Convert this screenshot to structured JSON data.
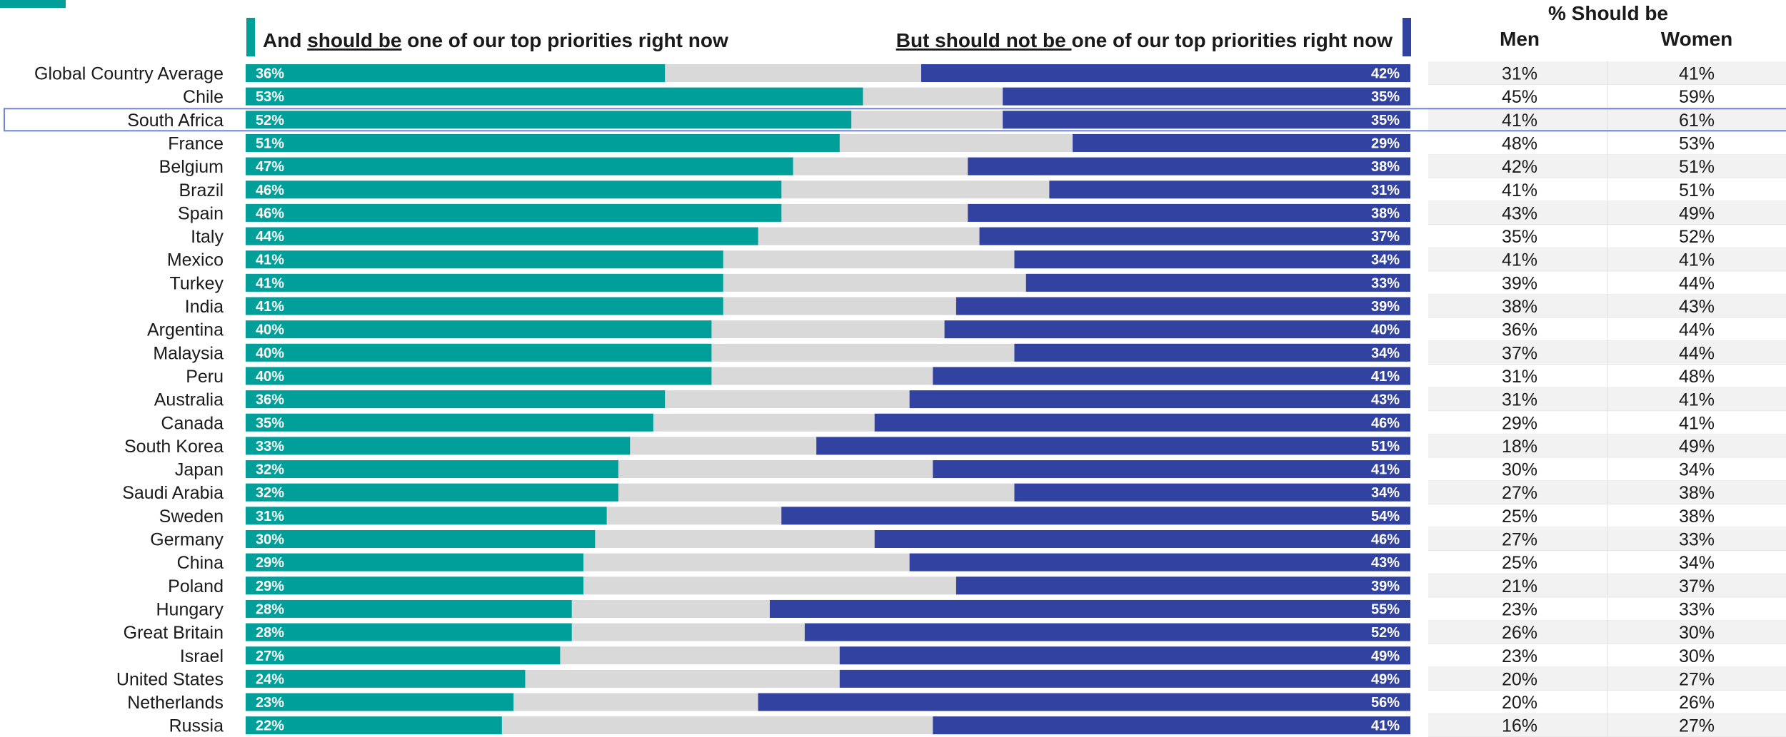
{
  "chart_data": {
    "type": "bar",
    "stacked": true,
    "orientation": "horizontal",
    "headers": {
      "left_prefix": "And ",
      "left_underlined": "should be",
      "left_suffix": " one of our top priorities right now",
      "right_underlined": "But should not be ",
      "right_suffix": "one of our top priorities right now",
      "table_title": "% Should be",
      "men": "Men",
      "women": "Women"
    },
    "colors": {
      "should": "#009f9a",
      "neutral": "#d9d9d9",
      "should_not": "#3142a0",
      "accent": "#009f9a",
      "highlight": "#6f84d9",
      "table_stripe": "#f2f2f2"
    },
    "highlighted": "South Africa",
    "series": [
      {
        "name": "should be",
        "values": [
          36,
          53,
          52,
          51,
          47,
          46,
          46,
          44,
          41,
          41,
          41,
          40,
          40,
          40,
          36,
          35,
          33,
          32,
          32,
          31,
          30,
          29,
          29,
          28,
          28,
          27,
          24,
          23,
          22
        ]
      },
      {
        "name": "should not be",
        "values": [
          42,
          35,
          35,
          29,
          38,
          31,
          38,
          37,
          34,
          33,
          39,
          40,
          34,
          41,
          43,
          46,
          51,
          41,
          34,
          54,
          46,
          43,
          39,
          55,
          52,
          49,
          49,
          56,
          41
        ]
      }
    ],
    "rows": [
      {
        "country": "Global Country Average",
        "should": "36%",
        "should_not": "42%",
        "men": "31%",
        "women": "41%"
      },
      {
        "country": "Chile",
        "should": "53%",
        "should_not": "35%",
        "men": "45%",
        "women": "59%"
      },
      {
        "country": "South Africa",
        "should": "52%",
        "should_not": "35%",
        "men": "41%",
        "women": "61%"
      },
      {
        "country": "France",
        "should": "51%",
        "should_not": "29%",
        "men": "48%",
        "women": "53%"
      },
      {
        "country": "Belgium",
        "should": "47%",
        "should_not": "38%",
        "men": "42%",
        "women": "51%"
      },
      {
        "country": "Brazil",
        "should": "46%",
        "should_not": "31%",
        "men": "41%",
        "women": "51%"
      },
      {
        "country": "Spain",
        "should": "46%",
        "should_not": "38%",
        "men": "43%",
        "women": "49%"
      },
      {
        "country": "Italy",
        "should": "44%",
        "should_not": "37%",
        "men": "35%",
        "women": "52%"
      },
      {
        "country": "Mexico",
        "should": "41%",
        "should_not": "34%",
        "men": "41%",
        "women": "41%"
      },
      {
        "country": "Turkey",
        "should": "41%",
        "should_not": "33%",
        "men": "39%",
        "women": "44%"
      },
      {
        "country": "India",
        "should": "41%",
        "should_not": "39%",
        "men": "38%",
        "women": "43%"
      },
      {
        "country": "Argentina",
        "should": "40%",
        "should_not": "40%",
        "men": "36%",
        "women": "44%"
      },
      {
        "country": "Malaysia",
        "should": "40%",
        "should_not": "34%",
        "men": "37%",
        "women": "44%"
      },
      {
        "country": "Peru",
        "should": "40%",
        "should_not": "41%",
        "men": "31%",
        "women": "48%"
      },
      {
        "country": "Australia",
        "should": "36%",
        "should_not": "43%",
        "men": "31%",
        "women": "41%"
      },
      {
        "country": "Canada",
        "should": "35%",
        "should_not": "46%",
        "men": "29%",
        "women": "41%"
      },
      {
        "country": "South Korea",
        "should": "33%",
        "should_not": "51%",
        "men": "18%",
        "women": "49%"
      },
      {
        "country": "Japan",
        "should": "32%",
        "should_not": "41%",
        "men": "30%",
        "women": "34%"
      },
      {
        "country": "Saudi Arabia",
        "should": "32%",
        "should_not": "34%",
        "men": "27%",
        "women": "38%"
      },
      {
        "country": "Sweden",
        "should": "31%",
        "should_not": "54%",
        "men": "25%",
        "women": "38%"
      },
      {
        "country": "Germany",
        "should": "30%",
        "should_not": "46%",
        "men": "27%",
        "women": "33%"
      },
      {
        "country": "China",
        "should": "29%",
        "should_not": "43%",
        "men": "25%",
        "women": "34%"
      },
      {
        "country": "Poland",
        "should": "29%",
        "should_not": "39%",
        "men": "21%",
        "women": "37%"
      },
      {
        "country": "Hungary",
        "should": "28%",
        "should_not": "55%",
        "men": "23%",
        "women": "33%"
      },
      {
        "country": "Great Britain",
        "should": "28%",
        "should_not": "52%",
        "men": "26%",
        "women": "30%"
      },
      {
        "country": "Israel",
        "should": "27%",
        "should_not": "49%",
        "men": "23%",
        "women": "30%"
      },
      {
        "country": "United States",
        "should": "24%",
        "should_not": "49%",
        "men": "20%",
        "women": "27%"
      },
      {
        "country": "Netherlands",
        "should": "23%",
        "should_not": "56%",
        "men": "20%",
        "women": "26%"
      },
      {
        "country": "Russia",
        "should": "22%",
        "should_not": "41%",
        "men": "16%",
        "women": "27%"
      }
    ],
    "xlim": [
      0,
      100
    ],
    "grid": false,
    "legend": "none"
  }
}
